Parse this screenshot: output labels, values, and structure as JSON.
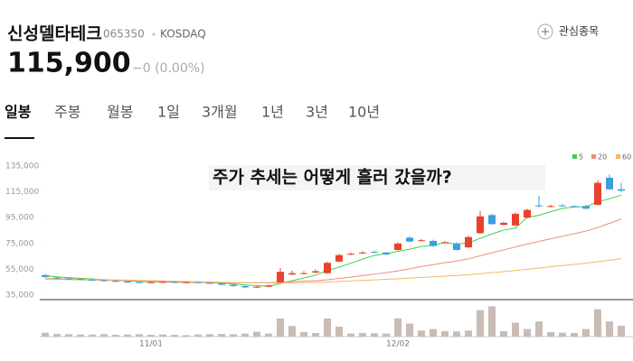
{
  "header": {
    "name": "신성델타테크",
    "code": "065350",
    "market": "KOSDAQ",
    "price": "115,900",
    "change": "−0 (0.00%)",
    "watch_button": "관심종목"
  },
  "tabs": {
    "items": [
      "일봉",
      "주봉",
      "월봉",
      "1일",
      "3개월",
      "1년",
      "3년",
      "10년"
    ],
    "selected": 0
  },
  "chart_data": {
    "type": "candlestick",
    "title": "주가 추세는 어떻게 흘러 갔을까?",
    "categories": [
      null,
      null,
      null,
      null,
      null,
      null,
      null,
      null,
      null,
      "11/01",
      null,
      null,
      null,
      null,
      null,
      null,
      null,
      null,
      null,
      null,
      null,
      null,
      null,
      null,
      null,
      null,
      null,
      null,
      null,
      null,
      "12/02",
      null,
      null,
      null,
      null,
      null,
      null,
      null,
      null,
      null,
      null,
      null,
      null,
      null,
      null,
      null,
      null,
      null,
      null,
      null
    ],
    "open": [
      50500,
      48500,
      48000,
      47500,
      47000,
      46500,
      46000,
      45500,
      45000,
      44800,
      45000,
      45200,
      44800,
      45000,
      44500,
      44000,
      43000,
      42000,
      41000,
      41500,
      45000,
      51000,
      51500,
      52500,
      52000,
      61000,
      66500,
      67500,
      68500,
      68000,
      70000,
      79500,
      77000,
      77000,
      75500,
      75000,
      72000,
      83000,
      97000,
      89500,
      89000,
      95000,
      104500,
      103500,
      104500,
      104000,
      104000,
      105000,
      126000,
      117000
    ],
    "high": [
      51500,
      49000,
      48500,
      48000,
      47500,
      47000,
      46500,
      46000,
      45500,
      45500,
      45800,
      45500,
      45500,
      45300,
      45000,
      44300,
      43500,
      42500,
      42000,
      43000,
      56000,
      54000,
      53500,
      55000,
      61000,
      67000,
      68000,
      69000,
      69500,
      68500,
      76000,
      80500,
      78500,
      78000,
      77000,
      76000,
      81000,
      100000,
      98000,
      92000,
      99000,
      102000,
      112000,
      105000,
      105500,
      104500,
      105000,
      124000,
      128500,
      122000
    ],
    "low": [
      48500,
      47500,
      47000,
      46500,
      46000,
      45500,
      45000,
      44500,
      44300,
      44500,
      44800,
      44300,
      44500,
      44000,
      43500,
      42500,
      41500,
      40500,
      40500,
      41000,
      44500,
      50500,
      51000,
      52000,
      51500,
      60500,
      66000,
      67000,
      67500,
      66000,
      69500,
      76000,
      76500,
      72500,
      75000,
      69500,
      71500,
      82500,
      89500,
      89000,
      88500,
      94500,
      103000,
      103000,
      103500,
      103000,
      101500,
      104500,
      116500,
      115000
    ],
    "close": [
      49000,
      48000,
      47500,
      47000,
      46500,
      46000,
      45500,
      45000,
      44800,
      45000,
      45200,
      44800,
      45000,
      44500,
      44000,
      43000,
      42000,
      41000,
      41500,
      42500,
      53000,
      52000,
      52000,
      53500,
      60000,
      66000,
      67000,
      68000,
      68000,
      66500,
      75000,
      76500,
      77500,
      73000,
      76000,
      70000,
      80000,
      96000,
      90000,
      91000,
      98000,
      101000,
      104000,
      104000,
      104000,
      103500,
      102000,
      122000,
      117000,
      115900
    ],
    "up_color": "#e8412c",
    "down_color": "#3a9fe0",
    "volume": [
      130000,
      90000,
      80000,
      70000,
      70000,
      80000,
      60000,
      70000,
      80000,
      60000,
      70000,
      60000,
      50000,
      70000,
      80000,
      90000,
      80000,
      100000,
      160000,
      100000,
      600000,
      350000,
      150000,
      120000,
      600000,
      330000,
      100000,
      120000,
      110000,
      100000,
      600000,
      430000,
      200000,
      250000,
      180000,
      170000,
      200000,
      870000,
      1000000,
      180000,
      460000,
      250000,
      500000,
      150000,
      130000,
      120000,
      250000,
      900000,
      500000,
      360000
    ],
    "volume_color": "#c9bcb4",
    "volume_lim": [
      0,
      1100000
    ],
    "series": [
      {
        "name": "5",
        "color": "#3fcf4a",
        "values": [
          50000,
          49200,
          48500,
          48000,
          47600,
          47000,
          46500,
          46000,
          45600,
          45300,
          45100,
          45000,
          44900,
          44900,
          44700,
          44300,
          43700,
          42900,
          42300,
          41800,
          44000,
          46200,
          48300,
          50500,
          54100,
          56700,
          59700,
          62900,
          65800,
          67100,
          68900,
          70600,
          72700,
          73700,
          75600,
          74600,
          75300,
          79000,
          82400,
          85400,
          87000,
          95200,
          96800,
          99600,
          102200,
          103300,
          103500,
          107300,
          109700,
          112500
        ]
      },
      {
        "name": "20",
        "color": "#f08a80",
        "values": [
          47500,
          47300,
          47100,
          46900,
          46700,
          46500,
          46300,
          46100,
          45900,
          45700,
          45500,
          45300,
          45100,
          44900,
          44800,
          44700,
          44600,
          44500,
          44600,
          44700,
          45000,
          45400,
          45800,
          46200,
          46900,
          47900,
          49000,
          50100,
          51300,
          52400,
          53800,
          55400,
          57100,
          58600,
          60100,
          61400,
          63100,
          65500,
          67800,
          70000,
          72300,
          74600,
          76600,
          78600,
          80600,
          82600,
          84600,
          87400,
          90600,
          94000
        ]
      },
      {
        "name": "60",
        "color": "#f5b865",
        "values": [
          48000,
          47800,
          47600,
          47400,
          47200,
          47000,
          46800,
          46600,
          46400,
          46200,
          46000,
          45800,
          45600,
          45400,
          45200,
          45000,
          44800,
          44600,
          44500,
          44400,
          44400,
          44500,
          44700,
          44900,
          45200,
          45600,
          46000,
          46400,
          46800,
          47200,
          47700,
          48200,
          48700,
          49200,
          49700,
          50200,
          50800,
          51600,
          52400,
          53200,
          54100,
          55000,
          56000,
          57000,
          57900,
          58800,
          59700,
          60900,
          62000,
          63200
        ]
      }
    ],
    "ylim": [
      31500,
      141300
    ],
    "yticks": [
      {
        "value": 35000,
        "label": "35,000"
      },
      {
        "value": 55000,
        "label": "55,000"
      },
      {
        "value": 75000,
        "label": "75,000"
      },
      {
        "value": 95000,
        "label": "95,000"
      },
      {
        "value": 115000,
        "label": "115,000"
      },
      {
        "value": 135000,
        "label": "135,000"
      }
    ]
  }
}
